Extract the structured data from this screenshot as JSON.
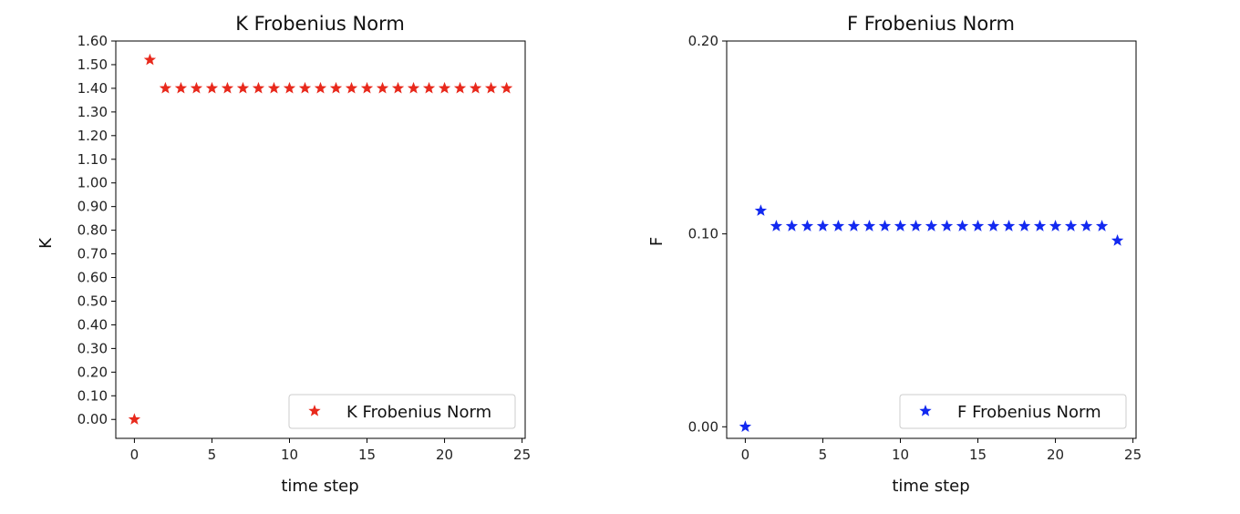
{
  "chart_data": [
    {
      "type": "scatter",
      "title": "K Frobenius Norm",
      "xlabel": "time step",
      "ylabel": "K",
      "xlim": [
        -1.2,
        25.2
      ],
      "ylim": [
        -0.08,
        1.6
      ],
      "xticks": [
        0,
        5,
        10,
        15,
        20,
        25
      ],
      "xtick_labels": [
        "0",
        "5",
        "10",
        "15",
        "20",
        "25"
      ],
      "yticks": [
        0.0,
        0.1,
        0.2,
        0.3,
        0.4,
        0.5,
        0.6,
        0.7,
        0.8,
        0.9,
        1.0,
        1.1,
        1.2,
        1.3,
        1.4,
        1.5,
        1.6
      ],
      "ytick_labels": [
        "0.00",
        "0.10",
        "0.20",
        "0.30",
        "0.40",
        "0.50",
        "0.60",
        "0.70",
        "0.80",
        "0.90",
        "1.00",
        "1.10",
        "1.20",
        "1.30",
        "1.40",
        "1.50",
        "1.60"
      ],
      "grid": false,
      "legend_position": "lower-right",
      "marker": "star",
      "series": [
        {
          "name": "K Frobenius Norm",
          "color": "#e8291c",
          "x": [
            0,
            1,
            2,
            3,
            4,
            5,
            6,
            7,
            8,
            9,
            10,
            11,
            12,
            13,
            14,
            15,
            16,
            17,
            18,
            19,
            20,
            21,
            22,
            23,
            24
          ],
          "y": [
            0.0,
            1.52,
            1.4,
            1.4,
            1.4,
            1.4,
            1.4,
            1.4,
            1.4,
            1.4,
            1.4,
            1.4,
            1.4,
            1.4,
            1.4,
            1.4,
            1.4,
            1.4,
            1.4,
            1.4,
            1.4,
            1.4,
            1.4,
            1.4,
            1.4
          ]
        }
      ]
    },
    {
      "type": "scatter",
      "title": "F Frobenius Norm",
      "xlabel": "time step",
      "ylabel": "F",
      "xlim": [
        -1.2,
        25.2
      ],
      "ylim": [
        -0.006,
        0.2
      ],
      "xticks": [
        0,
        5,
        10,
        15,
        20,
        25
      ],
      "xtick_labels": [
        "0",
        "5",
        "10",
        "15",
        "20",
        "25"
      ],
      "yticks": [
        0.0,
        0.1,
        0.2
      ],
      "ytick_labels": [
        "0.00",
        "0.10",
        "0.20"
      ],
      "grid": false,
      "legend_position": "lower-right",
      "marker": "star",
      "series": [
        {
          "name": "F Frobenius Norm",
          "color": "#1229f0",
          "x": [
            0,
            1,
            2,
            3,
            4,
            5,
            6,
            7,
            8,
            9,
            10,
            11,
            12,
            13,
            14,
            15,
            16,
            17,
            18,
            19,
            20,
            21,
            22,
            23,
            24
          ],
          "y": [
            0.0,
            0.112,
            0.104,
            0.104,
            0.104,
            0.104,
            0.104,
            0.104,
            0.104,
            0.104,
            0.104,
            0.104,
            0.104,
            0.104,
            0.104,
            0.104,
            0.104,
            0.104,
            0.104,
            0.104,
            0.104,
            0.104,
            0.104,
            0.104,
            0.0965
          ]
        }
      ]
    }
  ]
}
